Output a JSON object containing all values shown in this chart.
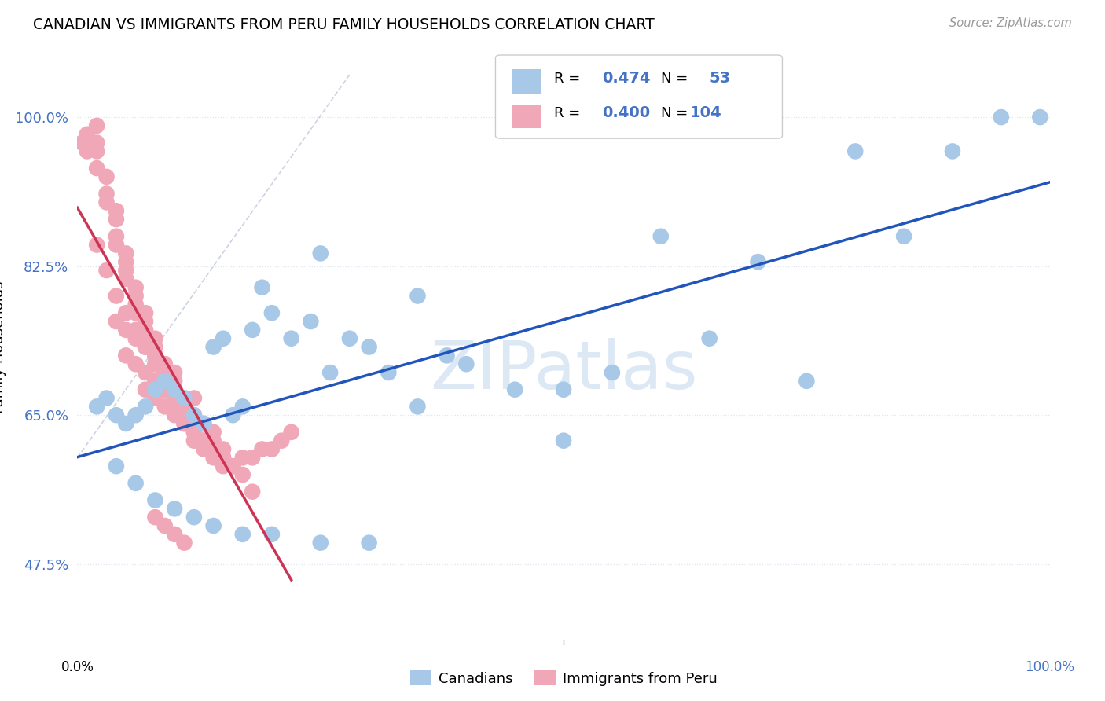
{
  "title": "CANADIAN VS IMMIGRANTS FROM PERU FAMILY HOUSEHOLDS CORRELATION CHART",
  "source": "Source: ZipAtlas.com",
  "ylabel": "Family Households",
  "yticks": [
    "47.5%",
    "65.0%",
    "82.5%",
    "100.0%"
  ],
  "ytick_vals": [
    0.475,
    0.65,
    0.825,
    1.0
  ],
  "xlim": [
    0.0,
    1.0
  ],
  "ylim": [
    0.38,
    1.08
  ],
  "canadian_color": "#a8c8e8",
  "peru_color": "#f0a8b8",
  "canadian_line_color": "#2255bb",
  "peru_line_color": "#cc3355",
  "canadian_r": 0.474,
  "canadian_n": 53,
  "peru_r": 0.4,
  "peru_n": 104,
  "legend_color": "#4472c4",
  "background_color": "#ffffff",
  "grid_color": "#dde5f0",
  "watermark_color": "#dde8f5",
  "canadian_x": [
    0.02,
    0.03,
    0.04,
    0.05,
    0.06,
    0.07,
    0.08,
    0.09,
    0.1,
    0.11,
    0.12,
    0.13,
    0.14,
    0.15,
    0.16,
    0.17,
    0.18,
    0.19,
    0.2,
    0.22,
    0.24,
    0.26,
    0.28,
    0.3,
    0.32,
    0.35,
    0.38,
    0.4,
    0.45,
    0.5,
    0.55,
    0.6,
    0.65,
    0.7,
    0.75,
    0.8,
    0.85,
    0.9,
    0.95,
    0.99,
    0.04,
    0.06,
    0.08,
    0.1,
    0.12,
    0.14,
    0.17,
    0.2,
    0.25,
    0.3,
    0.25,
    0.35,
    0.5
  ],
  "canadian_y": [
    0.66,
    0.67,
    0.65,
    0.64,
    0.65,
    0.66,
    0.68,
    0.69,
    0.68,
    0.67,
    0.65,
    0.64,
    0.73,
    0.74,
    0.65,
    0.66,
    0.75,
    0.8,
    0.77,
    0.74,
    0.76,
    0.7,
    0.74,
    0.73,
    0.7,
    0.66,
    0.72,
    0.71,
    0.68,
    0.68,
    0.7,
    0.86,
    0.74,
    0.83,
    0.69,
    0.96,
    0.86,
    0.96,
    1.0,
    1.0,
    0.59,
    0.57,
    0.55,
    0.54,
    0.53,
    0.52,
    0.51,
    0.51,
    0.5,
    0.5,
    0.84,
    0.79,
    0.62
  ],
  "peru_x": [
    0.005,
    0.01,
    0.01,
    0.02,
    0.02,
    0.02,
    0.02,
    0.03,
    0.03,
    0.03,
    0.04,
    0.04,
    0.04,
    0.04,
    0.05,
    0.05,
    0.05,
    0.05,
    0.06,
    0.06,
    0.06,
    0.06,
    0.07,
    0.07,
    0.07,
    0.07,
    0.08,
    0.08,
    0.08,
    0.08,
    0.09,
    0.09,
    0.09,
    0.1,
    0.1,
    0.1,
    0.1,
    0.11,
    0.11,
    0.11,
    0.12,
    0.12,
    0.12,
    0.13,
    0.13,
    0.14,
    0.14,
    0.15,
    0.15,
    0.16,
    0.17,
    0.18,
    0.19,
    0.2,
    0.21,
    0.22,
    0.02,
    0.03,
    0.04,
    0.05,
    0.06,
    0.07,
    0.08,
    0.09,
    0.1,
    0.11,
    0.12,
    0.13,
    0.14,
    0.15,
    0.16,
    0.17,
    0.18,
    0.07,
    0.08,
    0.09,
    0.1,
    0.11,
    0.12,
    0.13,
    0.14,
    0.15,
    0.05,
    0.06,
    0.07,
    0.08,
    0.09,
    0.1,
    0.11,
    0.12,
    0.13,
    0.14,
    0.04,
    0.05,
    0.06,
    0.07,
    0.08,
    0.09,
    0.1,
    0.12,
    0.08,
    0.09,
    0.1,
    0.11
  ],
  "peru_y": [
    0.97,
    0.98,
    0.96,
    0.99,
    0.97,
    0.96,
    0.94,
    0.93,
    0.91,
    0.9,
    0.89,
    0.88,
    0.86,
    0.85,
    0.84,
    0.83,
    0.82,
    0.81,
    0.8,
    0.79,
    0.78,
    0.77,
    0.77,
    0.76,
    0.75,
    0.74,
    0.74,
    0.73,
    0.72,
    0.71,
    0.71,
    0.7,
    0.69,
    0.69,
    0.68,
    0.67,
    0.66,
    0.66,
    0.65,
    0.64,
    0.64,
    0.63,
    0.62,
    0.62,
    0.61,
    0.61,
    0.6,
    0.6,
    0.59,
    0.59,
    0.6,
    0.6,
    0.61,
    0.61,
    0.62,
    0.63,
    0.85,
    0.82,
    0.79,
    0.77,
    0.75,
    0.73,
    0.71,
    0.7,
    0.68,
    0.67,
    0.65,
    0.64,
    0.62,
    0.61,
    0.59,
    0.58,
    0.56,
    0.68,
    0.67,
    0.66,
    0.65,
    0.64,
    0.63,
    0.62,
    0.61,
    0.6,
    0.72,
    0.71,
    0.7,
    0.69,
    0.68,
    0.67,
    0.66,
    0.65,
    0.64,
    0.63,
    0.76,
    0.75,
    0.74,
    0.73,
    0.72,
    0.71,
    0.7,
    0.67,
    0.53,
    0.52,
    0.51,
    0.5
  ]
}
